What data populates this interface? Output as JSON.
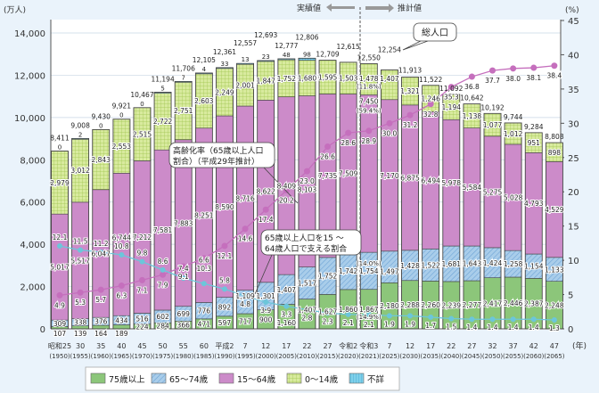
{
  "chart_data": {
    "type": "bar",
    "stacked": true,
    "left_unit": "(万人)",
    "right_unit": "(%)",
    "x_unit": "(年)",
    "ylim": [
      0,
      14000
    ],
    "y2lim": [
      0,
      45
    ],
    "yticks": [
      "0",
      "2,000",
      "4,000",
      "6,000",
      "8,000",
      "10,000",
      "12,000",
      "14,000"
    ],
    "y2ticks": [
      "0",
      "5",
      "10",
      "15",
      "20",
      "25",
      "30",
      "35",
      "40",
      "45"
    ],
    "categories": [
      "昭和25",
      "30",
      "35",
      "40",
      "45",
      "50",
      "55",
      "60",
      "平成2",
      "7",
      "12",
      "17",
      "22",
      "27",
      "令和2",
      "令和3",
      "7",
      "12",
      "17",
      "22",
      "27",
      "32",
      "37",
      "42",
      "47"
    ],
    "years": [
      "(1950)",
      "(1955)",
      "(1960)",
      "(1965)",
      "(1970)",
      "(1975)",
      "(1980)",
      "(1985)",
      "(1990)",
      "(1995)",
      "(2000)",
      "(2005)",
      "(2010)",
      "(2015)",
      "(2020)",
      "(2021)",
      "(2025)",
      "(2030)",
      "(2035)",
      "(2040)",
      "(2045)",
      "(2050)",
      "(2055)",
      "(2060)",
      "(2065)"
    ],
    "totals": [
      8411,
      9008,
      9430,
      9921,
      10467,
      11194,
      11706,
      12105,
      12361,
      12557,
      12693,
      12777,
      12806,
      12709,
      12615,
      12550,
      12254,
      11913,
      11522,
      11092,
      10642,
      10192,
      9744,
      9284,
      8808
    ],
    "series": [
      {
        "name": "75歳以上",
        "color": "#8cc67a",
        "values": [
          107,
          139,
          164,
          189,
          224,
          284,
          366,
          471,
          597,
          717,
          900,
          1160,
          1407,
          1627,
          1860,
          1867,
          2180,
          2288,
          2260,
          2239,
          2277,
          2417,
          2446,
          2387,
          2248
        ]
      },
      {
        "name": "65～74歳",
        "color": "#a9cdea",
        "values": [
          309,
          338,
          376,
          434,
          516,
          602,
          699,
          776,
          892,
          1109,
          1301,
          1407,
          1517,
          1752,
          1742,
          1754,
          1497,
          1428,
          1522,
          1681,
          1643,
          1424,
          1258,
          1154,
          1133
        ]
      },
      {
        "name": "15～64歳",
        "color": "#cc8bc9",
        "values": [
          5017,
          5517,
          6047,
          6744,
          7212,
          7581,
          7883,
          8251,
          8590,
          8716,
          8622,
          8409,
          8103,
          7735,
          7509,
          7450,
          7170,
          6875,
          6494,
          5978,
          5584,
          5275,
          5028,
          4793,
          4529
        ]
      },
      {
        "name": "0～14歳",
        "color": "#d8ea9e",
        "values": [
          2979,
          3012,
          2843,
          2553,
          2515,
          2722,
          2751,
          2603,
          2249,
          2001,
          1847,
          1752,
          1680,
          1595,
          1503,
          1478,
          1407,
          1321,
          1246,
          1194,
          1138,
          1077,
          1012,
          951,
          898
        ]
      },
      {
        "name": "不詳",
        "color": "#7fd0ea",
        "values": [
          0,
          2,
          0,
          0,
          0,
          5,
          7,
          4,
          33,
          13,
          23,
          48,
          98,
          null,
          null,
          null,
          null,
          null,
          null,
          null,
          null,
          null,
          null,
          null,
          null
        ]
      }
    ],
    "lines": [
      {
        "name": "高齢化率（65歳以上人口割合）（平成29年推計）",
        "color": "#c56fbd",
        "axis": "right",
        "values": [
          4.9,
          5.3,
          5.7,
          6.3,
          7.1,
          7.9,
          9.1,
          10.3,
          12.1,
          14.6,
          17.4,
          20.2,
          23.0,
          26.6,
          28.6,
          28.9,
          30.0,
          31.2,
          32.8,
          35.3,
          36.8,
          37.7,
          38.0,
          38.1,
          38.4
        ]
      },
      {
        "name": "65歳以上人口を15～64歳人口で支える割合",
        "color": "#6cc6da",
        "axis": "right",
        "values": [
          12.1,
          11.5,
          11.2,
          10.8,
          9.8,
          8.6,
          7.4,
          6.6,
          5.8,
          4.8,
          3.9,
          3.3,
          2.8,
          2.3,
          2.1,
          2.1,
          1.9,
          1.9,
          1.7,
          1.5,
          1.4,
          1.4,
          1.4,
          1.4,
          1.3
        ]
      }
    ],
    "share_labels_2021": {
      "0-14": "(11.8%)",
      "15-64": "(59.4%)",
      "65-74": "(14.0%)",
      "75+": "(14.9%)"
    },
    "annotations": {
      "actual": "実績値",
      "projected": "推計値",
      "total_callout": "総人口",
      "aging_callout_1": "高齢化率（65歳以上人口",
      "aging_callout_2": "割合）（平成29年推計）",
      "support_callout_1": "65歳以上人口を15 ～",
      "support_callout_2": "64歳人口で支える割合"
    },
    "legend": "bottom"
  }
}
